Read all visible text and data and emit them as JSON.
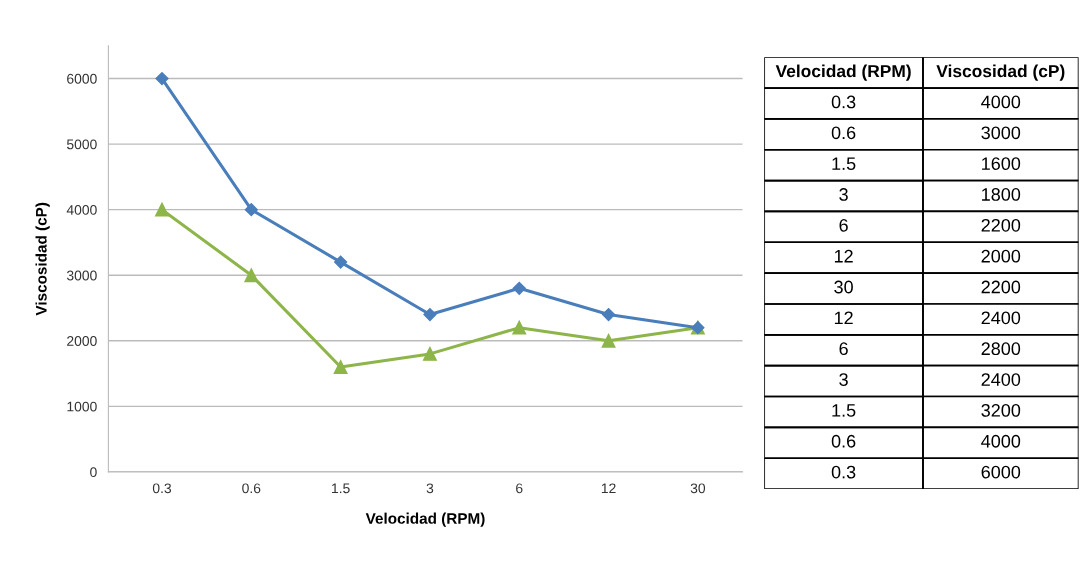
{
  "chart_data": [
    {
      "type": "line",
      "xlabel": "Velocidad (RPM)",
      "ylabel": "Viscosidad (cP)",
      "categories": [
        "0.3",
        "0.6",
        "1.5",
        "3",
        "6",
        "12",
        "30"
      ],
      "ylim": [
        0,
        6500
      ],
      "yticks": [
        0,
        1000,
        2000,
        3000,
        4000,
        5000,
        6000
      ],
      "grid": "y",
      "legend": false,
      "series": [
        {
          "color": "#4a7ebb",
          "marker": "diamond",
          "values": [
            6000,
            4000,
            3200,
            2400,
            2800,
            2400,
            2200
          ]
        },
        {
          "color": "#8db54a",
          "marker": "triangle",
          "values": [
            4000,
            3000,
            1600,
            1800,
            2200,
            2000,
            2200
          ]
        }
      ]
    },
    {
      "type": "heatmap",
      "ylabel": "Velocidad (RPM)",
      "categories": [
        "Viscosidad (cP)"
      ],
      "y_categories": [
        "0.3",
        "0.6",
        "1.5",
        "3",
        "6",
        "12",
        "30",
        "12",
        "6",
        "3",
        "1.5",
        "0.6",
        "0.3"
      ],
      "data_labels": true,
      "cells": [
        [
          4000
        ],
        [
          3000
        ],
        [
          1600
        ],
        [
          1800
        ],
        [
          2200
        ],
        [
          2000
        ],
        [
          2200
        ],
        [
          2400
        ],
        [
          2800
        ],
        [
          2400
        ],
        [
          3200
        ],
        [
          4000
        ],
        [
          6000
        ]
      ]
    }
  ]
}
